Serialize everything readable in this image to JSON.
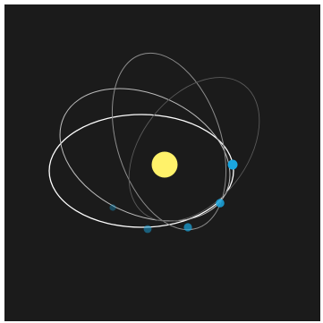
{
  "scene": {
    "background_color": "#1b1b1b",
    "star": {
      "name": "star",
      "color": "#fff26a"
    },
    "orbit_colors": [
      "#ffffff",
      "#bdbdbd",
      "#8c8c8c",
      "#5a5a5a"
    ],
    "planet_color": "#1aa6df",
    "trail_fade": [
      1.0,
      0.85,
      0.7,
      0.5,
      0.35
    ]
  }
}
